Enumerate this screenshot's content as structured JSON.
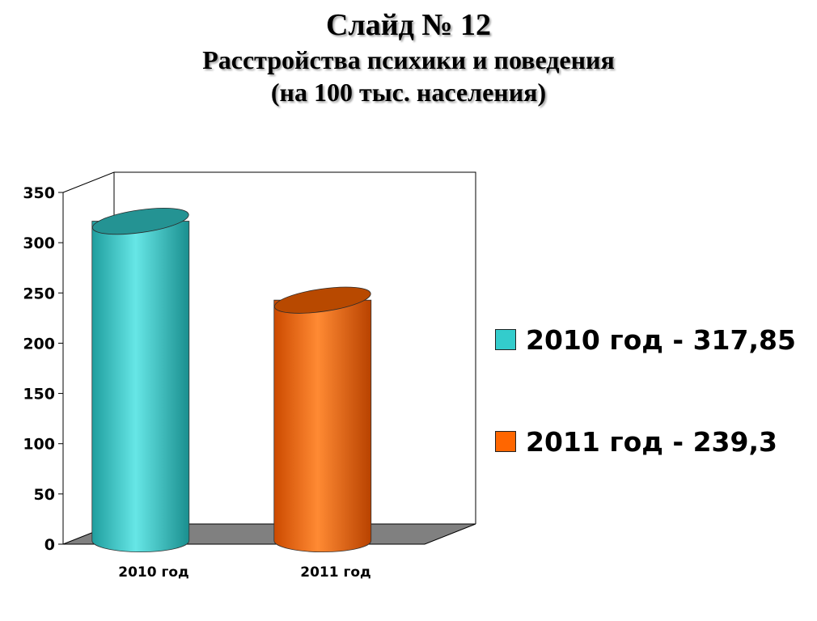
{
  "header": {
    "title": "Слайд № 12",
    "subtitle": "Расстройства психики и поведения",
    "subtitle2": "(на 100 тыс. населения)"
  },
  "chart_data": {
    "type": "bar",
    "style": "3d-cylinder",
    "categories": [
      "2010 год",
      "2011 год"
    ],
    "values": [
      317.85,
      239.3
    ],
    "colors": [
      "#33cccc",
      "#ff6600"
    ],
    "ylim": [
      0,
      350
    ],
    "yticks": [
      "0",
      "50",
      "100",
      "150",
      "200",
      "250",
      "300",
      "350"
    ],
    "legend_position": "right",
    "legend": [
      {
        "label": "2010 год - 317,85",
        "color": "#33cccc"
      },
      {
        "label": "2011 год - 239,3",
        "color": "#ff6600"
      }
    ],
    "floor_color": "#808080",
    "grid": false
  }
}
